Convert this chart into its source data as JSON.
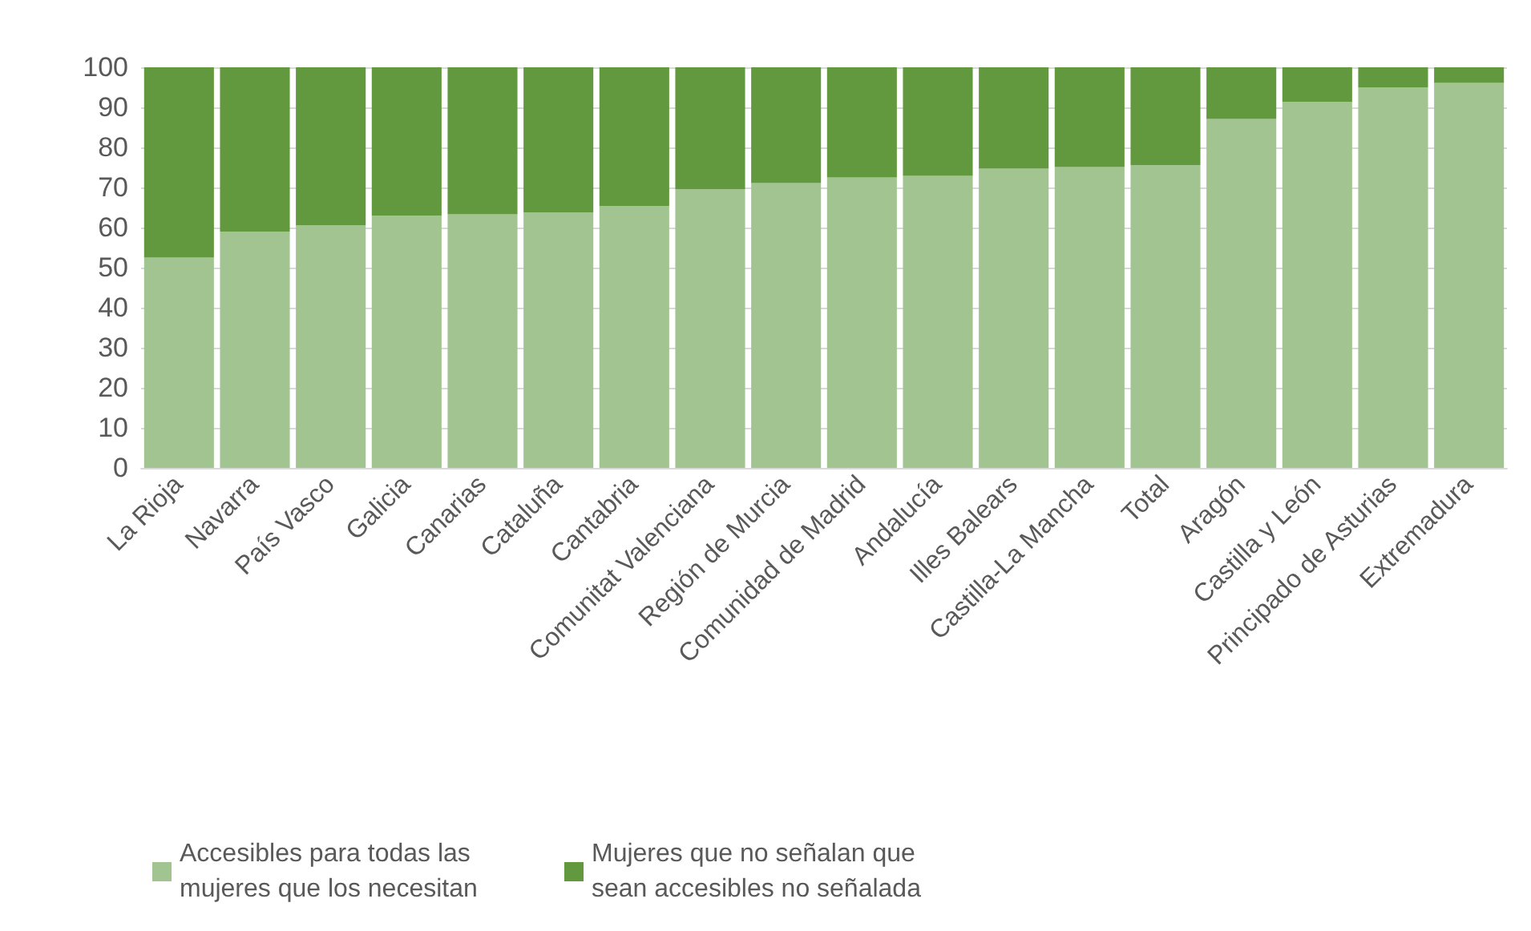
{
  "chart_data": {
    "type": "bar",
    "stacked": true,
    "categories": [
      "La Rioja",
      "Navarra",
      "País Vasco",
      "Galicia",
      "Canarias",
      "Cataluña",
      "Cantabria",
      "Comunitat Valenciana",
      "Región de Murcia",
      "Comunidad de Madrid",
      "Andalucía",
      "Illes Balears",
      "Castilla-La Mancha",
      "Total",
      "Aragón",
      "Castilla y León",
      "Principado de Asturias",
      "Extremadura"
    ],
    "series": [
      {
        "name": "Accesibles para todas las mujeres que los necesitan",
        "color": "#a2c490",
        "values": [
          52.5,
          59,
          60.6,
          63,
          63.3,
          63.8,
          65.4,
          69.6,
          71.1,
          72.5,
          72.9,
          74.7,
          75.1,
          75.6,
          87.1,
          91.4,
          95,
          96.1
        ]
      },
      {
        "name": "Mujeres que no señalan que sean accesibles no señalada",
        "color": "#62983e",
        "values": [
          47.5,
          41,
          39.4,
          37,
          36.7,
          36.2,
          34.6,
          30.4,
          28.9,
          27.5,
          27.1,
          25.3,
          24.9,
          24.4,
          12.9,
          8.6,
          5,
          3.9
        ]
      }
    ],
    "ylim": [
      0,
      100
    ],
    "yticks": [
      0,
      10,
      20,
      30,
      40,
      50,
      60,
      70,
      80,
      90,
      100
    ],
    "grid": "y",
    "legend": "bottom"
  }
}
